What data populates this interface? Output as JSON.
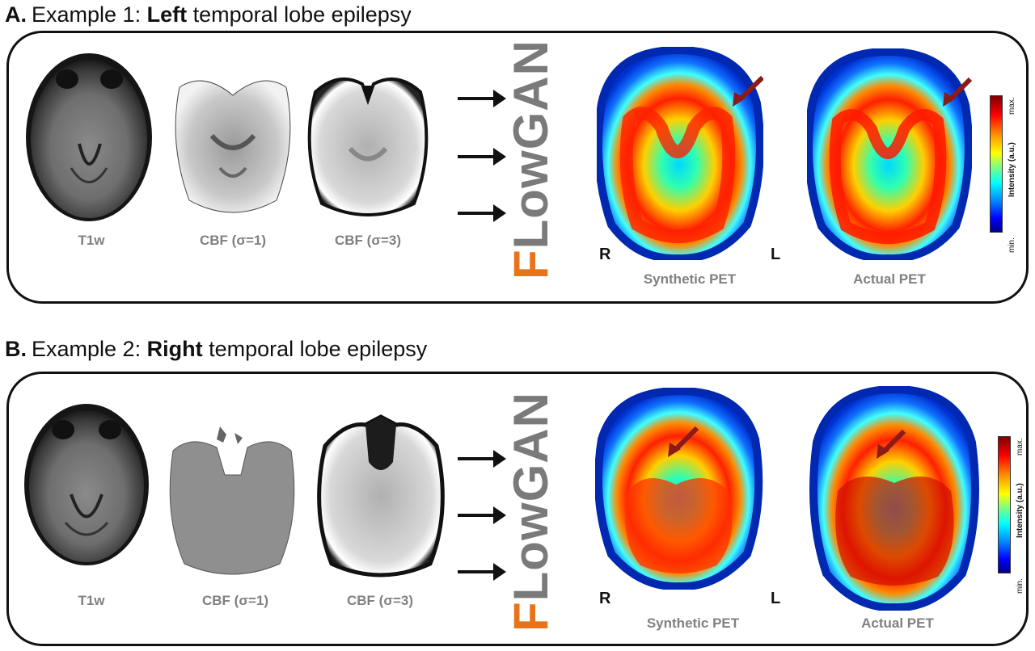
{
  "panels": [
    {
      "letter": "A.",
      "title_prefix": "Example 1: ",
      "title_emphasis": "Left",
      "title_suffix": " temporal lobe epilepsy",
      "captions": {
        "t1w": "T1w",
        "cbf1": "CBF (σ=1)",
        "cbf3": "CBF (σ=3)",
        "synthetic": "Synthetic PET",
        "actual": "Actual PET"
      },
      "side_right": "R",
      "side_left": "L",
      "model_first": "F",
      "model_rest": "LowGAN",
      "colorbar": {
        "max": "max.",
        "min": "min.",
        "label": "Intensity (a.u.)"
      }
    },
    {
      "letter": "B.",
      "title_prefix": "Example 2: ",
      "title_emphasis": "Right",
      "title_suffix": " temporal lobe epilepsy",
      "captions": {
        "t1w": "T1w",
        "cbf1": "CBF (σ=1)",
        "cbf3": "CBF (σ=3)",
        "synthetic": "Synthetic PET",
        "actual": "Actual PET"
      },
      "side_right": "R",
      "side_left": "L",
      "model_first": "F",
      "model_rest": "LowGAN",
      "colorbar": {
        "max": "max.",
        "min": "min.",
        "label": "Intensity (a.u.)"
      }
    }
  ],
  "colors": {
    "model_first_letter": "#e8731a",
    "model_text": "#7a7a7a",
    "arrow_lesion": "#8b1a1a"
  }
}
